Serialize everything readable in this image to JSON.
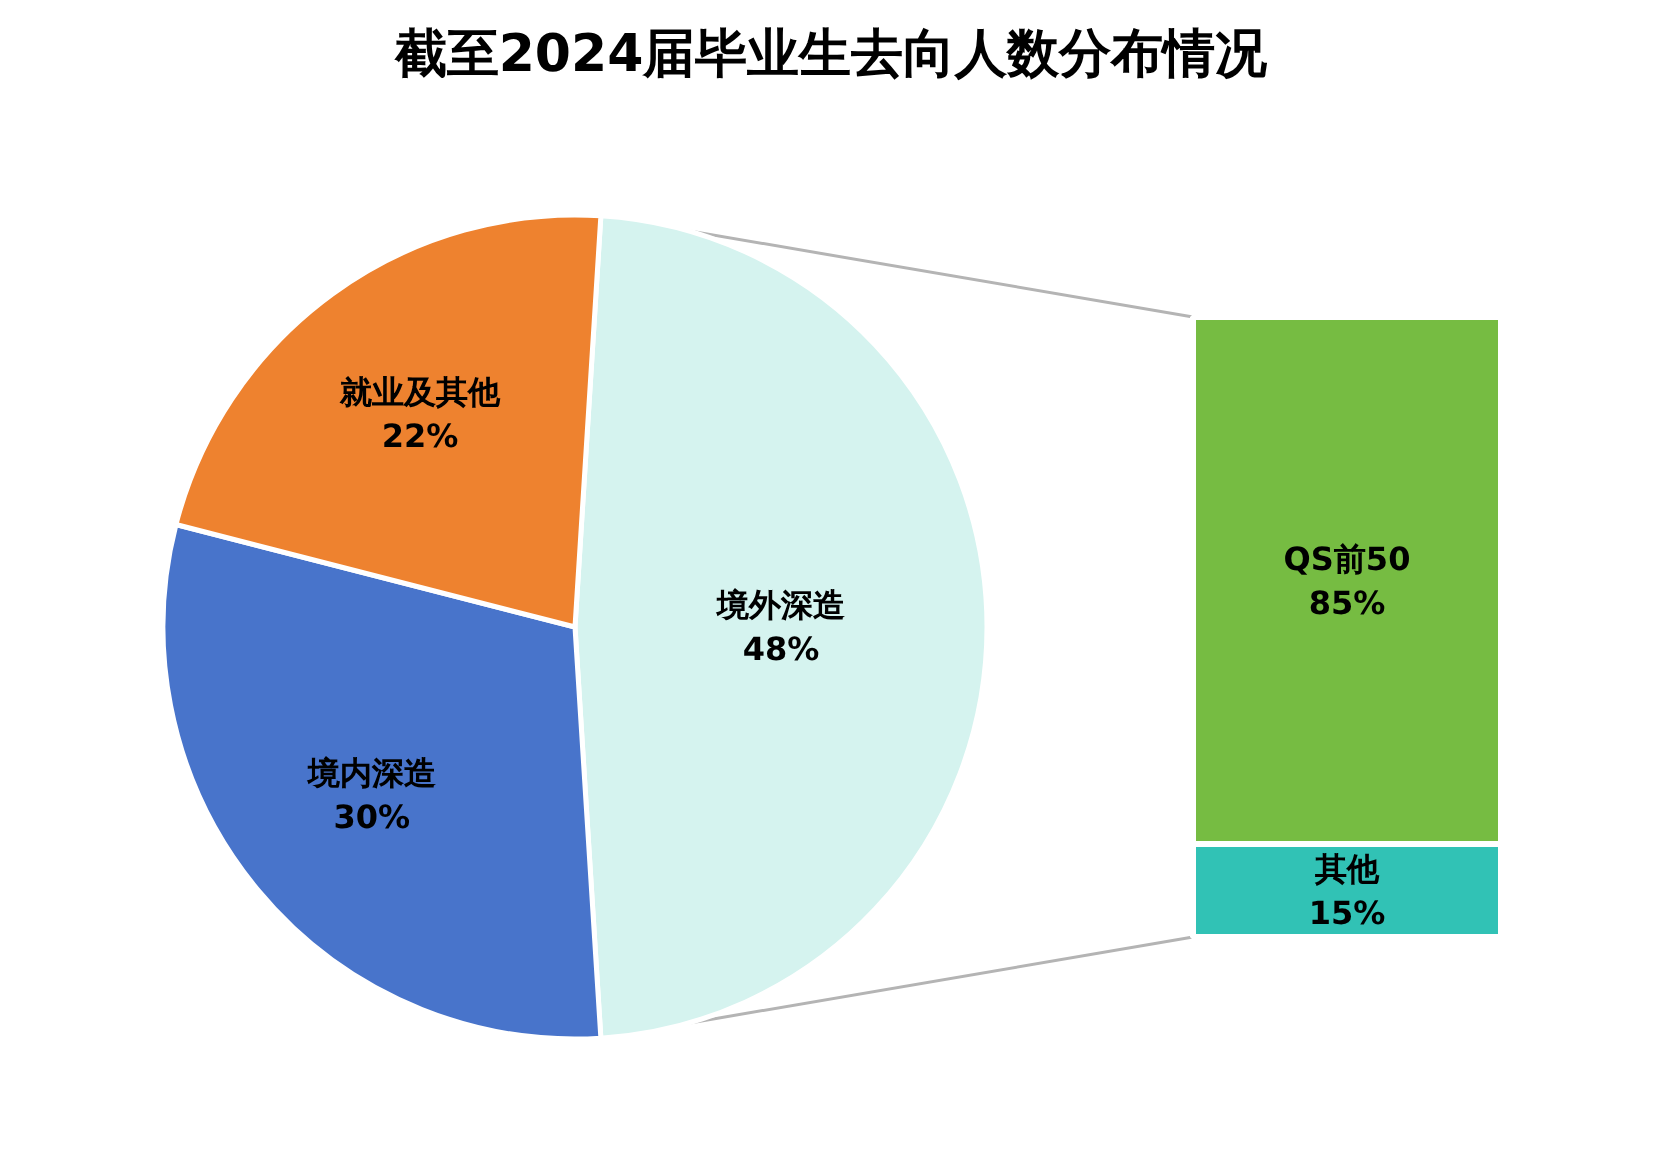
{
  "chart_data": [
    {
      "type": "pie",
      "title": "截至2024届毕业生去向人数分布情况",
      "categories": [
        "境外深造",
        "境内深造",
        "就业及其他"
      ],
      "values": [
        48,
        30,
        22
      ],
      "value_labels": [
        "48%",
        "30%",
        "22%"
      ],
      "colors": [
        "#d5f3ef",
        "#4874cb",
        "#ee822f"
      ]
    },
    {
      "type": "bar",
      "stacked": true,
      "categories": [
        null
      ],
      "series": [
        {
          "name": "其他",
          "color": "#31c2b5",
          "values": [
            15
          ],
          "value_labels": [
            "15%"
          ]
        },
        {
          "name": "QS前50",
          "color": "#76bc42",
          "values": [
            85
          ],
          "value_labels": [
            "85%"
          ]
        }
      ]
    }
  ]
}
